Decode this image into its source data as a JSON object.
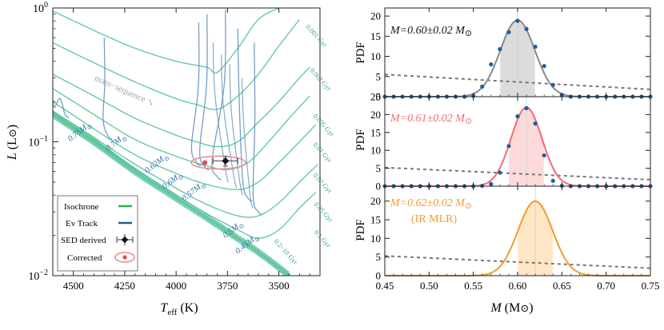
{
  "colors": {
    "isochrone": "#4cbf94",
    "track": "#5b8fb8",
    "track_leg": "#1a5f8a",
    "dashed": "#777777",
    "curve_grey": "#8a8a8a",
    "curve_red": "#f26a6e",
    "curve_orange": "#f59b2c",
    "fill_grey": "#d6d6d6",
    "fill_red": "#fbd3d3",
    "fill_orange": "#fde1bc",
    "dots": "#1f5f9e",
    "mass_label": "#2f6ea8",
    "age_label": "#2ea37a",
    "main_seq": "#9aa4ad",
    "corrected_ellipse": "#f19595",
    "corrected_dot": "#e8484e"
  },
  "chart_data": [
    {
      "type": "scatter",
      "panel": "hr-diagram",
      "xlabel_main": "T",
      "xlabel_sub": "eff",
      "xlabel_unit": "(K)",
      "ylabel_main": "L",
      "ylabel_unit": "(L",
      "x_tick_labels": [
        "4500",
        "4250",
        "4000",
        "3750",
        "3500"
      ],
      "x_ticks": [
        4500,
        4250,
        4000,
        3750,
        3500
      ],
      "xlim": [
        4600,
        3300
      ],
      "ylim": [
        0.01,
        1.0
      ],
      "y_scale": "log",
      "y_tick_labels": [
        {
          "value": 1.0,
          "base": "10",
          "exp": "0"
        },
        {
          "value": 0.1,
          "base": "10",
          "exp": "−1"
        },
        {
          "value": 0.01,
          "base": "10",
          "exp": "−2"
        }
      ],
      "isochrones": [
        {
          "label": "0.001 Gyr",
          "points": [
            [
              4600,
              0.95
            ],
            [
              4400,
              0.68
            ],
            [
              4200,
              0.5
            ],
            [
              4000,
              0.4
            ],
            [
              3850,
              0.36
            ],
            [
              3800,
              0.33
            ],
            [
              3700,
              0.5
            ],
            [
              3600,
              0.82
            ],
            [
              3500,
              1.0
            ]
          ]
        },
        {
          "label": "0.002 Gyr",
          "points": [
            [
              4600,
              0.55
            ],
            [
              4400,
              0.39
            ],
            [
              4200,
              0.28
            ],
            [
              4000,
              0.21
            ],
            [
              3900,
              0.19
            ],
            [
              3800,
              0.175
            ],
            [
              3700,
              0.22
            ],
            [
              3600,
              0.32
            ],
            [
              3500,
              0.52
            ],
            [
              3400,
              0.82
            ]
          ]
        },
        {
          "label": "0.005 Gyr",
          "points": [
            [
              4600,
              0.32
            ],
            [
              4400,
              0.22
            ],
            [
              4200,
              0.15
            ],
            [
              4000,
              0.112
            ],
            [
              3900,
              0.1
            ],
            [
              3800,
              0.092
            ],
            [
              3700,
              0.1
            ],
            [
              3600,
              0.14
            ],
            [
              3500,
              0.2
            ],
            [
              3400,
              0.3
            ],
            [
              3350,
              0.36
            ]
          ]
        },
        {
          "label": "0.01 Gyr",
          "points": [
            [
              4600,
              0.25
            ],
            [
              4400,
              0.16
            ],
            [
              4200,
              0.104
            ],
            [
              4000,
              0.078
            ],
            [
              3850,
              0.066
            ],
            [
              3750,
              0.062
            ],
            [
              3650,
              0.07
            ],
            [
              3550,
              0.1
            ],
            [
              3450,
              0.15
            ],
            [
              3350,
              0.22
            ]
          ]
        },
        {
          "label": "0.02 Gyr",
          "points": [
            [
              4600,
              0.2
            ],
            [
              4400,
              0.125
            ],
            [
              4200,
              0.08
            ],
            [
              4000,
              0.058
            ],
            [
              3850,
              0.048
            ],
            [
              3700,
              0.044
            ],
            [
              3600,
              0.05
            ],
            [
              3500,
              0.07
            ],
            [
              3400,
              0.1
            ],
            [
              3320,
              0.135
            ]
          ]
        },
        {
          "label": "0.05 Gyr",
          "points": [
            [
              4600,
              0.17
            ],
            [
              4400,
              0.108
            ],
            [
              4200,
              0.068
            ],
            [
              4000,
              0.045
            ],
            [
              3850,
              0.034
            ],
            [
              3700,
              0.028
            ],
            [
              3600,
              0.028
            ],
            [
              3500,
              0.035
            ],
            [
              3400,
              0.05
            ],
            [
              3310,
              0.068
            ]
          ]
        },
        {
          "label": "0.1 Gyr",
          "points": [
            [
              4600,
              0.165
            ],
            [
              4400,
              0.103
            ],
            [
              4200,
              0.063
            ],
            [
              4000,
              0.04
            ],
            [
              3850,
              0.029
            ],
            [
              3700,
              0.022
            ],
            [
              3600,
              0.019
            ],
            [
              3500,
              0.022
            ],
            [
              3400,
              0.032
            ],
            [
              3320,
              0.042
            ]
          ]
        },
        {
          "label": "0.2−10 Gyr",
          "points": [
            [
              4600,
              0.16
            ],
            [
              4400,
              0.1
            ],
            [
              4200,
              0.06
            ],
            [
              4000,
              0.038
            ],
            [
              3850,
              0.027
            ],
            [
              3700,
              0.019
            ],
            [
              3600,
              0.015
            ],
            [
              3500,
              0.0115
            ],
            [
              3450,
              0.01
            ]
          ]
        }
      ],
      "isochrone_label_values": [
        {
          "text": "0.001 Gyr",
          "t": 3370,
          "l": 0.72
        },
        {
          "text": "0.002 Gyr",
          "t": 3350,
          "l": 0.34
        },
        {
          "text": "0.005 Gyr",
          "t": 3335,
          "l": 0.155
        },
        {
          "text": "0.01 Gyr",
          "t": 3335,
          "l": 0.095
        },
        {
          "text": "0.02 Gyr",
          "t": 3335,
          "l": 0.056
        },
        {
          "text": "0.05 Gyr",
          "t": 3330,
          "l": 0.034
        },
        {
          "text": "0.1 Gyr",
          "t": 3330,
          "l": 0.021
        },
        {
          "text": "0.2−10 Gyr",
          "t": 3525,
          "l": 0.018
        }
      ],
      "tracks": [
        {
          "mass": "0.75M",
          "start": [
            4600,
            0.2
          ],
          "turn": [
            4540,
            0.16
          ]
        },
        {
          "mass": "0.7M",
          "start": [
            4350,
            0.6
          ],
          "turn": [
            4330,
            0.11
          ]
        },
        {
          "mass": "0.62M",
          "start": [
            3890,
            0.78
          ],
          "turn": [
            3900,
            0.07
          ]
        },
        {
          "mass": "0.6M",
          "start": [
            3850,
            0.9
          ],
          "turn": [
            3860,
            0.065
          ]
        },
        {
          "mass": "0.57M",
          "start": [
            3760,
            0.98
          ],
          "turn": [
            3800,
            0.055
          ]
        },
        {
          "mass": "0.5M",
          "start": [
            3700,
            0.7
          ],
          "turn": [
            3650,
            0.038
          ]
        },
        {
          "mass": "0.45M",
          "start": [
            3620,
            0.55
          ],
          "turn": [
            3600,
            0.03
          ]
        }
      ],
      "mass_labels": [
        {
          "text": "0.75M",
          "t": 4515,
          "l": 0.1
        },
        {
          "text": "0.7M",
          "t": 4330,
          "l": 0.085
        },
        {
          "text": "0.62M",
          "t": 4140,
          "l": 0.058
        },
        {
          "text": "0.6M",
          "t": 4055,
          "l": 0.044
        },
        {
          "text": "0.57M",
          "t": 3960,
          "l": 0.036
        },
        {
          "text": "0.5M",
          "t": 3760,
          "l": 0.019
        },
        {
          "text": "0.45M",
          "t": 3700,
          "l": 0.0145
        }
      ],
      "main_sequence_label": "main−sequence",
      "sed_point": {
        "t": 3760,
        "l": 0.072,
        "t_err": 60,
        "l_err_lo": 0.066,
        "l_err_hi": 0.078
      },
      "corrected_point": {
        "t": 3860,
        "l": 0.07
      },
      "legend": {
        "placement": "bottom-left",
        "items": [
          {
            "label": "Isochrone",
            "kind": "isochrone"
          },
          {
            "label": "Ev Track",
            "kind": "track"
          },
          {
            "label": "SED derived",
            "kind": "sed"
          },
          {
            "label": "Corrected",
            "kind": "corrected"
          }
        ]
      }
    },
    {
      "type": "line",
      "panel": "pdf-top",
      "ylabel": "PDF",
      "annotation": "M=0.60±0.02 M",
      "annotation_color": "#111111",
      "mean": 0.6,
      "peak": 19.0,
      "sigma": 0.0195,
      "interval": [
        0.58,
        0.62
      ],
      "ylim": [
        0,
        22
      ],
      "y_ticks": [
        0,
        5,
        10,
        15,
        20
      ],
      "curve_color": "grey",
      "points": {
        "x": [
          0.45,
          0.46,
          0.47,
          0.48,
          0.49,
          0.5,
          0.51,
          0.52,
          0.53,
          0.54,
          0.55,
          0.56,
          0.57,
          0.58,
          0.59,
          0.6,
          0.61,
          0.62,
          0.63,
          0.64,
          0.65,
          0.66,
          0.67,
          0.68,
          0.69,
          0.7,
          0.71,
          0.72,
          0.73,
          0.74,
          0.75
        ],
        "y": [
          0,
          0,
          0,
          0,
          0,
          0,
          0,
          0,
          0,
          0,
          0.2,
          2.5,
          8.0,
          11.8,
          16.0,
          18.8,
          16.8,
          12.4,
          7.6,
          2.9,
          0.4,
          0,
          0,
          0,
          0,
          0,
          0,
          0,
          0,
          0,
          0
        ]
      },
      "prior": {
        "y0": 5.5,
        "y1": 1.8
      }
    },
    {
      "type": "line",
      "panel": "pdf-middle",
      "ylabel": "PDF",
      "annotation": "M=0.61±0.02 M",
      "annotation_color": "#f26a6e",
      "mean": 0.61,
      "peak": 22.0,
      "sigma": 0.0175,
      "interval": [
        0.59,
        0.63
      ],
      "ylim": [
        0,
        25
      ],
      "y_ticks": [
        0,
        5,
        10,
        15,
        20,
        25
      ],
      "curve_color": "red",
      "points": {
        "x": [
          0.45,
          0.46,
          0.47,
          0.48,
          0.49,
          0.5,
          0.51,
          0.52,
          0.53,
          0.54,
          0.55,
          0.56,
          0.57,
          0.58,
          0.59,
          0.6,
          0.61,
          0.62,
          0.63,
          0.64,
          0.65,
          0.66,
          0.67,
          0.68,
          0.69,
          0.7,
          0.71,
          0.72,
          0.73,
          0.74,
          0.75
        ],
        "y": [
          0,
          0,
          0,
          0,
          0,
          0,
          0,
          0,
          0,
          0,
          0,
          0.1,
          0.6,
          3.8,
          11.2,
          19.5,
          21.8,
          17.5,
          8.6,
          1.5,
          0.1,
          0,
          0,
          0,
          0,
          0,
          0,
          0,
          0,
          0,
          0
        ]
      },
      "prior": {
        "y0": 5.2,
        "y1": 1.8
      }
    },
    {
      "type": "line",
      "panel": "pdf-bottom",
      "ylabel": "PDF",
      "annotation": "M=0.62±0.02 M",
      "annotation_sub": "(IR MLR)",
      "annotation_color": "#f59b2c",
      "mean": 0.62,
      "peak": 20.0,
      "sigma": 0.0195,
      "interval": [
        0.6,
        0.64
      ],
      "ylim": [
        0,
        24
      ],
      "y_ticks": [
        0,
        5,
        10,
        15,
        20
      ],
      "curve_color": "orange",
      "prior": {
        "y0": 5.3,
        "y1": 2.0
      },
      "xlabel": "M",
      "xlabel_unit": "(M",
      "xlim": [
        0.45,
        0.75
      ],
      "x_ticks": [
        0.45,
        0.5,
        0.55,
        0.6,
        0.65,
        0.7,
        0.75
      ],
      "x_tick_labels": [
        "0.45",
        "0.50",
        "0.55",
        "0.60",
        "0.65",
        "0.70",
        "0.75"
      ]
    }
  ]
}
